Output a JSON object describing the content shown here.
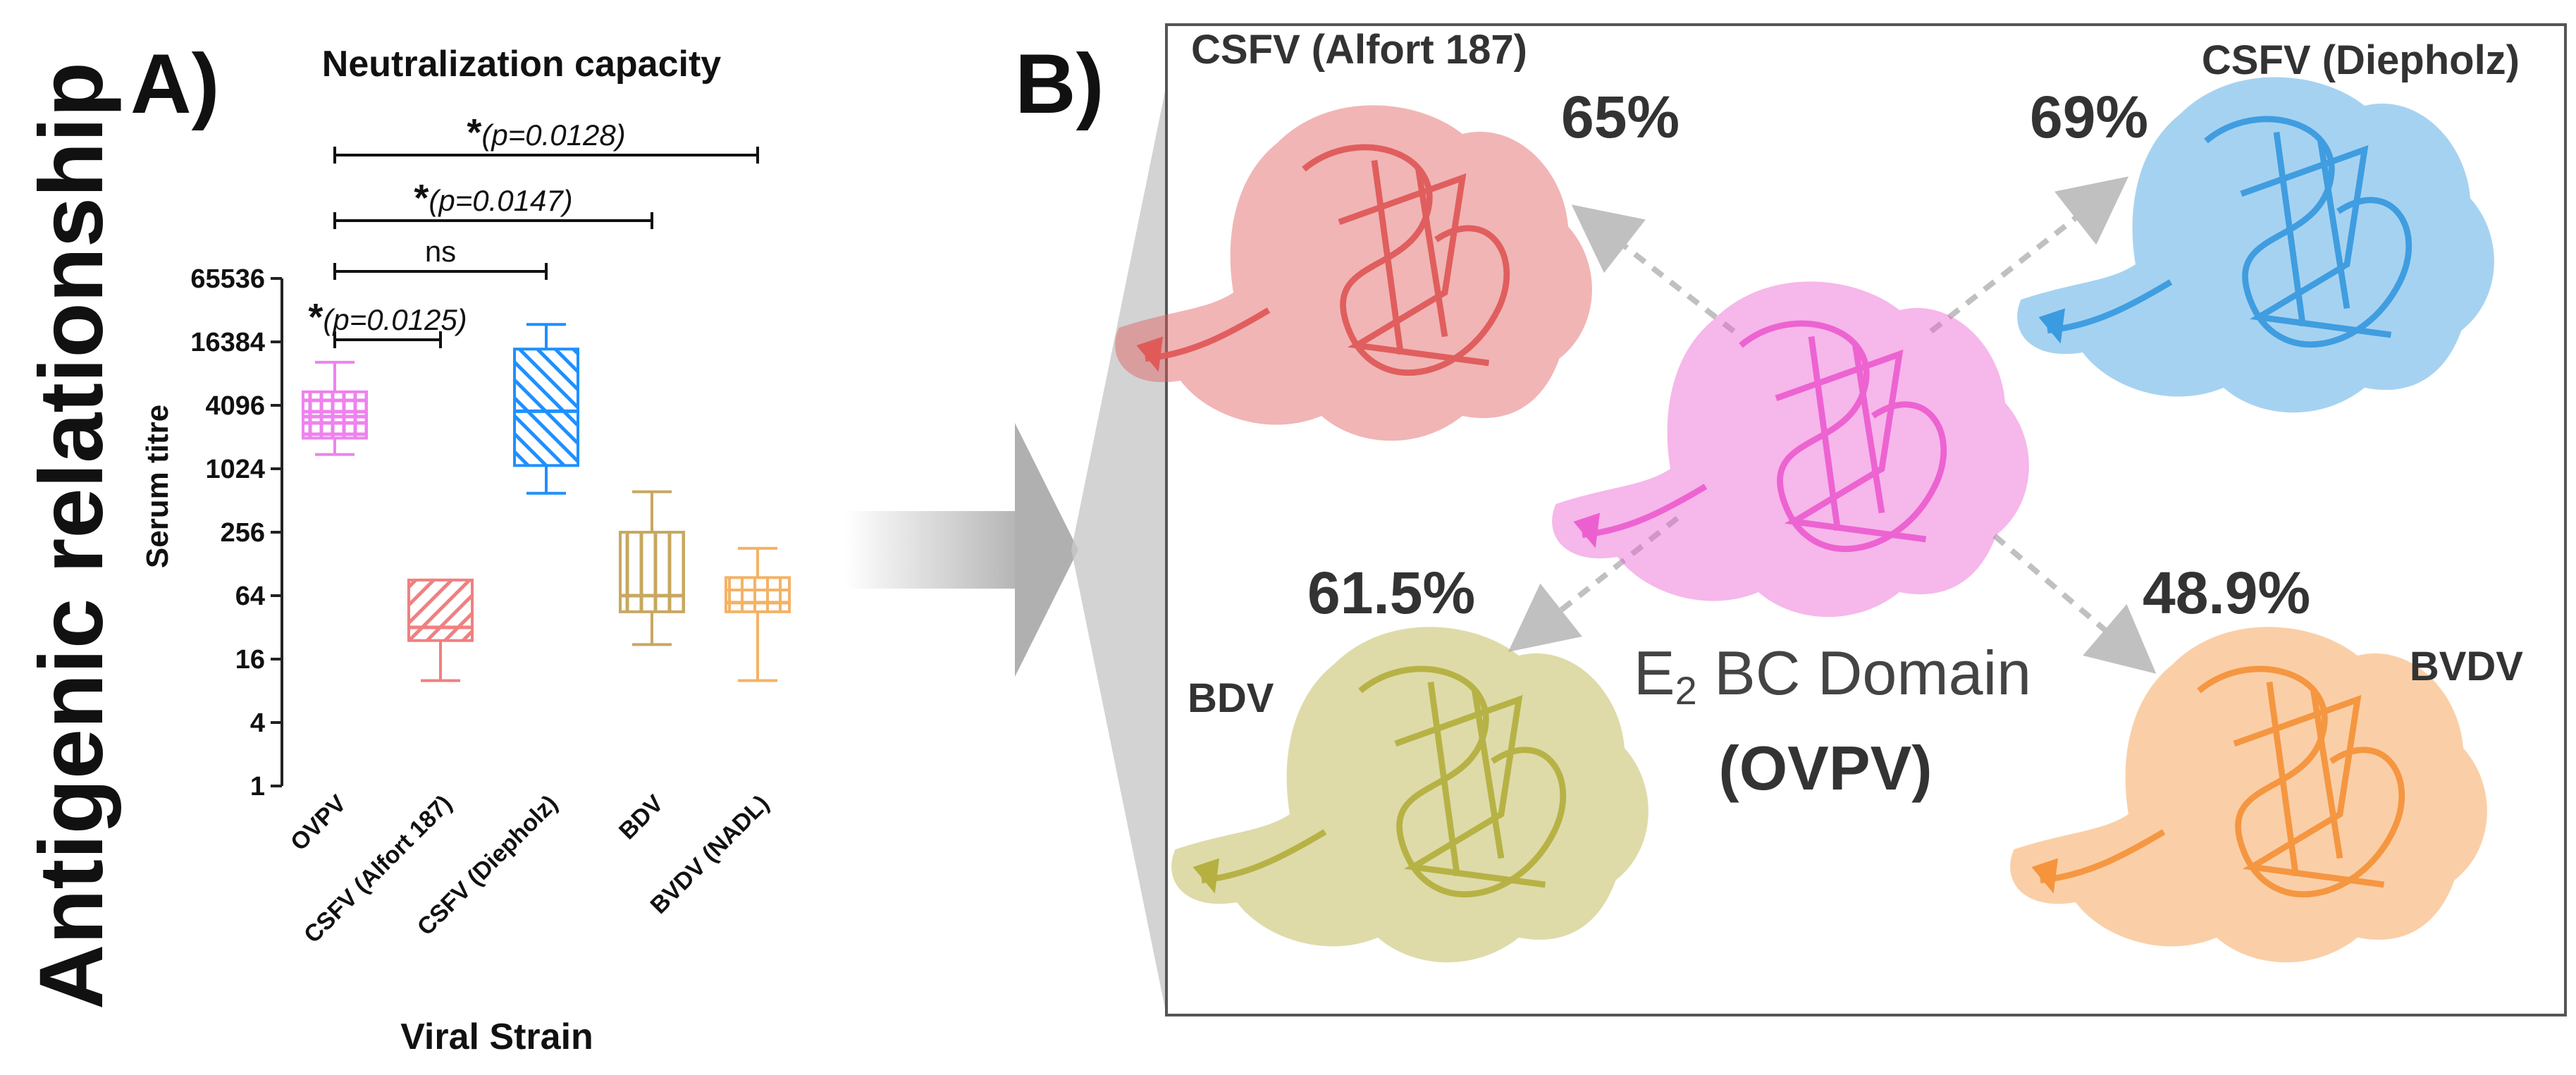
{
  "figure": {
    "side_title": "Antigenic relationship",
    "panel_a_label": "A)",
    "panel_b_label": "B)"
  },
  "chart_data": {
    "type": "box",
    "title": "Neutralization capacity",
    "xlabel": "Viral Strain",
    "ylabel": "Serum titre",
    "y_scale": "log2",
    "ylim": [
      1,
      65536
    ],
    "yticks": [
      1,
      4,
      16,
      64,
      256,
      1024,
      4096,
      16384,
      65536
    ],
    "ytick_labels": [
      "1",
      "4",
      "16",
      "64",
      "256",
      "1024",
      "4096",
      "16384",
      "65536"
    ],
    "grid": false,
    "categories": [
      "OVPV",
      "CSFV (Alfort 187)",
      "CSFV (Diepholz)",
      "BDV",
      "BVDV (NADL)"
    ],
    "boxes": [
      {
        "min": 1400,
        "q1": 2000,
        "median": 3200,
        "q3": 5500,
        "max": 10500
      },
      {
        "min": 10,
        "q1": 24,
        "median": 32,
        "q3": 90,
        "max": 90
      },
      {
        "min": 600,
        "q1": 1100,
        "median": 3600,
        "q3": 14000,
        "max": 24000
      },
      {
        "min": 22,
        "q1": 45,
        "median": 64,
        "q3": 256,
        "max": 620
      },
      {
        "min": 10,
        "q1": 45,
        "median": 55,
        "q3": 95,
        "max": 180
      }
    ],
    "colors": [
      "#ee82ee",
      "#f08080",
      "#1e90ff",
      "#c8a860",
      "#f4b266"
    ],
    "annotations": [
      {
        "from": 0,
        "to": 1,
        "label": "(p=0.0125)"
      },
      {
        "from": 0,
        "to": 2,
        "label": "ns"
      },
      {
        "from": 0,
        "to": 3,
        "label": "(p=0.0147)"
      },
      {
        "from": 0,
        "to": 4,
        "label": "(p=0.0128)"
      }
    ]
  },
  "panel_b": {
    "center_label_main": "E",
    "center_label_sub": "2",
    "center_label_rest": " BC Domain",
    "center_label_strain": "(OVPV)",
    "structures": [
      {
        "name": "CSFV (Alfort 187)",
        "identity": "65%",
        "color": "#e05a5a"
      },
      {
        "name": "CSFV (Diepholz)",
        "identity": "69%",
        "color": "#3a9be0"
      },
      {
        "name": "BDV",
        "identity": "61.5%",
        "color": "#b5b040"
      },
      {
        "name": "BVDV",
        "identity": "48.9%",
        "color": "#f5943c"
      },
      {
        "name": "OVPV",
        "identity": "",
        "color": "#ec5fd0"
      }
    ]
  }
}
